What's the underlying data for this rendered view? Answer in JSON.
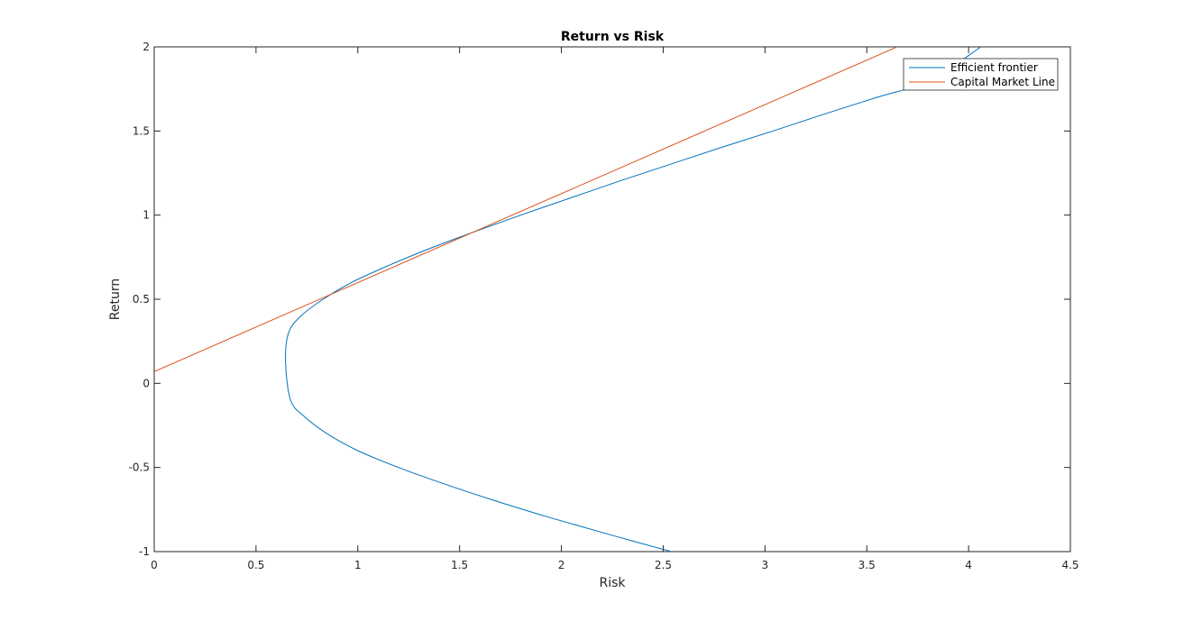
{
  "chart_data": {
    "type": "line",
    "title": "Return vs Risk",
    "xlabel": "Risk",
    "ylabel": "Return",
    "xlim": [
      0,
      4.5
    ],
    "ylim": [
      -1,
      2
    ],
    "xticks": [
      0,
      0.5,
      1,
      1.5,
      2,
      2.5,
      3,
      3.5,
      4,
      4.5
    ],
    "yticks": [
      -1,
      -0.5,
      0,
      0.5,
      1,
      1.5,
      2
    ],
    "xtick_labels": [
      "0",
      "0.5",
      "1",
      "1.5",
      "2",
      "2.5",
      "3",
      "3.5",
      "4",
      "4.5"
    ],
    "ytick_labels": [
      "-1",
      "-0.5",
      "0",
      "0.5",
      "1",
      "1.5",
      "2"
    ],
    "grid": false,
    "legend_position": "top-right",
    "series": [
      {
        "name": "Efficient frontier",
        "color": "#0072BD",
        "x": [
          2.54,
          2.24,
          1.95,
          1.68,
          1.43,
          1.2,
          1.0,
          0.85,
          0.74,
          0.67,
          0.645,
          0.66,
          0.72,
          0.83,
          0.97,
          1.15,
          1.35,
          1.57,
          1.8,
          2.04,
          2.28,
          2.53,
          2.78,
          3.04,
          3.29,
          3.55,
          3.81,
          4.06
        ],
        "y": [
          -1.0,
          -0.9,
          -0.8,
          -0.7,
          -0.6,
          -0.5,
          -0.4,
          -0.3,
          -0.2,
          -0.1,
          0.13,
          0.3,
          0.4,
          0.5,
          0.6,
          0.7,
          0.8,
          0.9,
          1.0,
          1.1,
          1.2,
          1.3,
          1.4,
          1.5,
          1.6,
          1.7,
          1.8,
          2.0
        ]
      },
      {
        "name": "Capital Market Line",
        "color": "#D95319",
        "x": [
          0,
          4.5
        ],
        "y": [
          0.07,
          2.45
        ]
      }
    ]
  }
}
